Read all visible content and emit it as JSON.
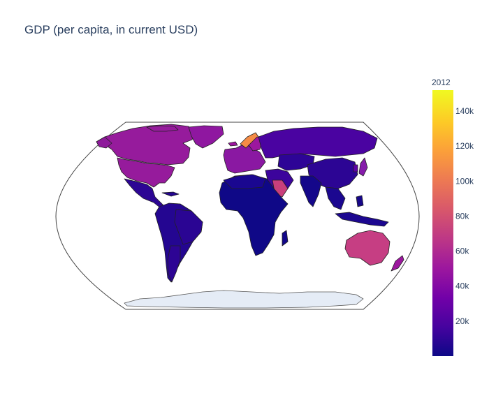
{
  "title": "GDP (per capita, in current USD)",
  "colorbar": {
    "title": "2012",
    "ticks": [
      "20k",
      "40k",
      "60k",
      "80k",
      "100k",
      "120k",
      "140k"
    ],
    "tick_values": [
      20000,
      40000,
      60000,
      80000,
      100000,
      120000,
      140000
    ],
    "min": 0,
    "max": 152000,
    "colorscale": [
      "#0d0887",
      "#46039f",
      "#7201a8",
      "#9c179e",
      "#bd3786",
      "#d8576b",
      "#ed7953",
      "#fb9f3a",
      "#fdca26",
      "#f0f921"
    ]
  },
  "map": {
    "projection": "natural earth",
    "land_color_no_data": "#e5ecf6",
    "border_color": "#222222"
  },
  "chart_data": {
    "type": "choropleth",
    "title": "GDP (per capita, in current USD)",
    "colorbar_title": "2012",
    "regions": [
      {
        "name": "Canada",
        "value": 52500
      },
      {
        "name": "United States",
        "value": 51500
      },
      {
        "name": "Greenland",
        "value": 50000
      },
      {
        "name": "Mexico",
        "value": 10000
      },
      {
        "name": "Brazil",
        "value": 12000
      },
      {
        "name": "Argentina",
        "value": 13000
      },
      {
        "name": "Chile",
        "value": 15000
      },
      {
        "name": "Norway",
        "value": 101000
      },
      {
        "name": "Western Europe",
        "value": 45000
      },
      {
        "name": "Russia",
        "value": 15000
      },
      {
        "name": "China",
        "value": 6300
      },
      {
        "name": "India",
        "value": 1500
      },
      {
        "name": "Saudi Arabia",
        "value": 25000
      },
      {
        "name": "Japan",
        "value": 48000
      },
      {
        "name": "Australia",
        "value": 68000
      },
      {
        "name": "New Zealand",
        "value": 38000
      },
      {
        "name": "Africa",
        "value": 2000
      }
    ]
  }
}
